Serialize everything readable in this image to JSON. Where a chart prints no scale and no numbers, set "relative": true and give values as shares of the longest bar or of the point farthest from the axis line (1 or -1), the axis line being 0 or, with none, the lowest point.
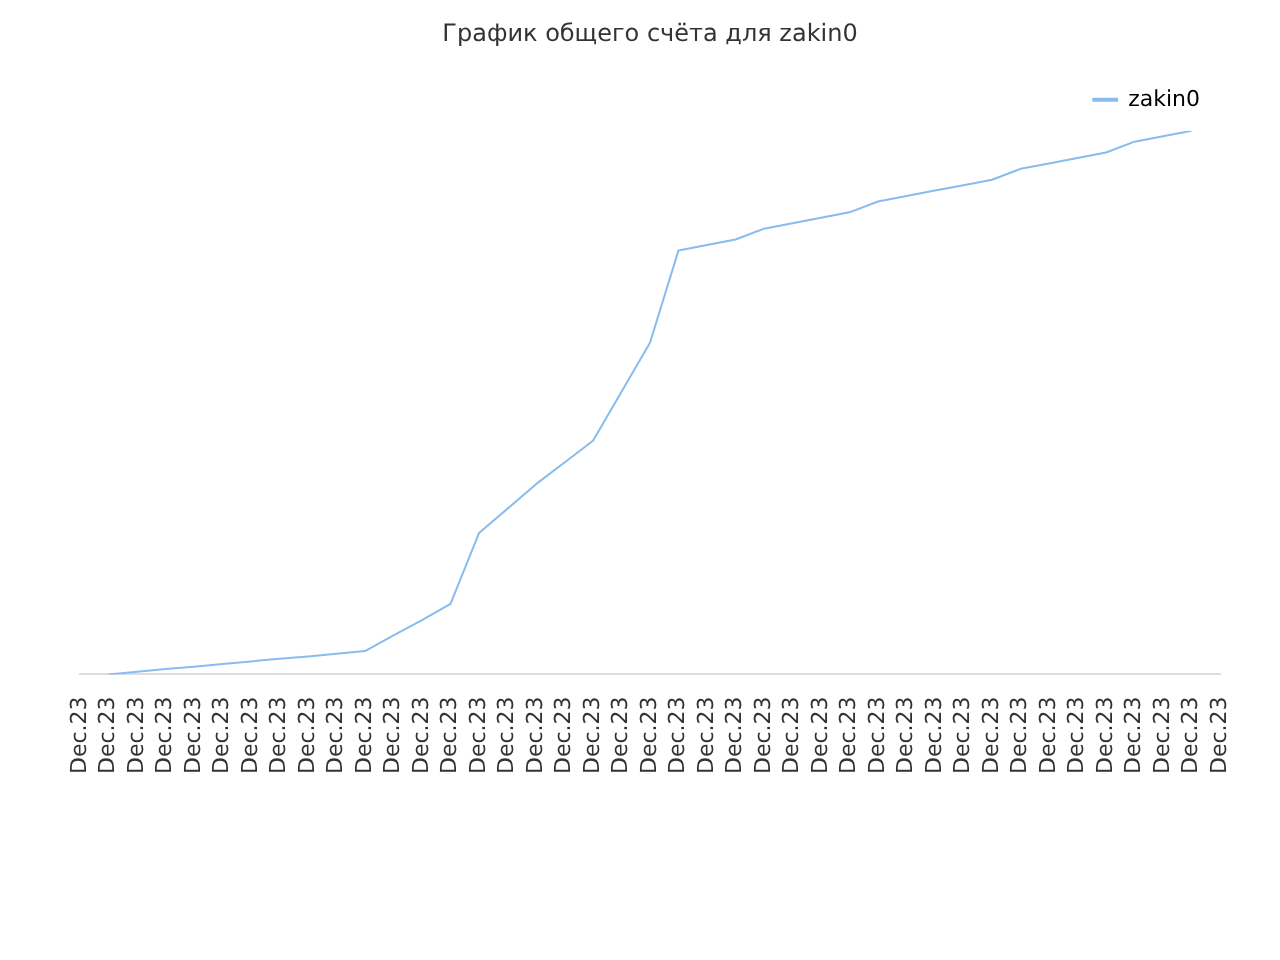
{
  "chart_data": {
    "type": "line",
    "title": "График общего счёта для zakin0",
    "relative": true,
    "legend": "top right",
    "grid": false,
    "marker": "none",
    "line_style": "solid",
    "categories": [
      "Dec.23",
      "Dec.23",
      "Dec.23",
      "Dec.23",
      "Dec.23",
      "Dec.23",
      "Dec.23",
      "Dec.23",
      "Dec.23",
      "Dec.23",
      "Dec.23",
      "Dec.23",
      "Dec.23",
      "Dec.23",
      "Dec.23",
      "Dec.23",
      "Dec.23",
      "Dec.23",
      "Dec.23",
      "Dec.23",
      "Dec.23",
      "Dec.23",
      "Dec.23",
      "Dec.23",
      "Dec.23",
      "Dec.23",
      "Dec.23",
      "Dec.23",
      "Dec.23",
      "Dec.23",
      "Dec.23",
      "Dec.23",
      "Dec.23",
      "Dec.23",
      "Dec.23",
      "Dec.23",
      "Dec.23",
      "Dec.23",
      "Dec.23",
      "Dec.23",
      "Dec.23"
    ],
    "series": [
      {
        "name": "zakin0",
        "color": "#88bbee",
        "values": [
          null,
          0,
          0.005,
          0.01,
          0.014,
          0.019,
          0.024,
          0.029,
          0.033,
          0.038,
          0.043,
          0.072,
          0.1,
          0.13,
          0.26,
          0.305,
          0.35,
          0.39,
          0.43,
          0.52,
          0.61,
          0.78,
          0.79,
          0.8,
          0.82,
          0.83,
          0.84,
          0.85,
          0.87,
          0.88,
          0.89,
          0.9,
          0.91,
          0.93,
          0.94,
          0.95,
          0.96,
          0.98,
          0.99,
          1,
          null
        ]
      }
    ]
  }
}
